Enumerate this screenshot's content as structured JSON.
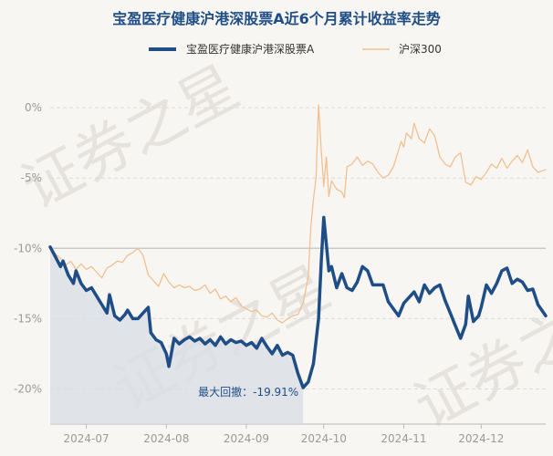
{
  "chart_data": {
    "type": "line",
    "title": "宝盈医疗健康沪港深股票A近6个月累计收益率走势",
    "watermark": "证券之星",
    "y_unit": "%",
    "ylim": [
      -22.5,
      1.5
    ],
    "y_ticks": [
      0,
      -5,
      -10,
      -15,
      -20
    ],
    "y_tick_labels": [
      "0%",
      "-5%",
      "-10%",
      "-15%",
      "-20%"
    ],
    "x_range": [
      "2024-06-17",
      "2024-12-26"
    ],
    "x_ticks": [
      "2024-07-01",
      "2024-08-01",
      "2024-09-01",
      "2024-10-01",
      "2024-11-01",
      "2024-12-01"
    ],
    "x_tick_labels": [
      "2024-07",
      "2024-08",
      "2024-09",
      "2024-10",
      "2024-11",
      "2024-12"
    ],
    "legend_position": "top",
    "grid": true,
    "colors": {
      "fund": "#1f4e86",
      "index": "#f2c08f",
      "drawdown_fill": "#d8dee6"
    },
    "series": [
      {
        "name": "宝盈医疗健康沪港深股票A",
        "values": [
          [
            "2024-06-17",
            -9.9
          ],
          [
            "2024-06-19",
            -10.6
          ],
          [
            "2024-06-21",
            -11.3
          ],
          [
            "2024-06-22",
            -10.9
          ],
          [
            "2024-06-24",
            -11.9
          ],
          [
            "2024-06-26",
            -12.5
          ],
          [
            "2024-06-27",
            -11.6
          ],
          [
            "2024-06-29",
            -12.5
          ],
          [
            "2024-07-01",
            -13.0
          ],
          [
            "2024-07-03",
            -12.8
          ],
          [
            "2024-07-05",
            -13.4
          ],
          [
            "2024-07-07",
            -14.0
          ],
          [
            "2024-07-09",
            -14.6
          ],
          [
            "2024-07-10",
            -13.3
          ],
          [
            "2024-07-12",
            -14.8
          ],
          [
            "2024-07-14",
            -15.1
          ],
          [
            "2024-07-16",
            -14.7
          ],
          [
            "2024-07-17",
            -14.4
          ],
          [
            "2024-07-19",
            -15.0
          ],
          [
            "2024-07-21",
            -15.0
          ],
          [
            "2024-07-23",
            -14.6
          ],
          [
            "2024-07-25",
            -14.2
          ],
          [
            "2024-07-26",
            -16.0
          ],
          [
            "2024-07-28",
            -16.5
          ],
          [
            "2024-07-30",
            -16.7
          ],
          [
            "2024-08-01",
            -17.5
          ],
          [
            "2024-08-02",
            -18.4
          ],
          [
            "2024-08-04",
            -16.4
          ],
          [
            "2024-08-06",
            -16.8
          ],
          [
            "2024-08-08",
            -16.5
          ],
          [
            "2024-08-10",
            -16.3
          ],
          [
            "2024-08-12",
            -16.6
          ],
          [
            "2024-08-14",
            -16.4
          ],
          [
            "2024-08-16",
            -16.8
          ],
          [
            "2024-08-18",
            -16.5
          ],
          [
            "2024-08-20",
            -16.9
          ],
          [
            "2024-08-22",
            -16.3
          ],
          [
            "2024-08-24",
            -16.8
          ],
          [
            "2024-08-26",
            -16.5
          ],
          [
            "2024-08-28",
            -16.7
          ],
          [
            "2024-08-30",
            -16.6
          ],
          [
            "2024-09-01",
            -16.9
          ],
          [
            "2024-09-03",
            -16.7
          ],
          [
            "2024-09-05",
            -17.1
          ],
          [
            "2024-09-07",
            -16.4
          ],
          [
            "2024-09-09",
            -17.0
          ],
          [
            "2024-09-11",
            -17.5
          ],
          [
            "2024-09-13",
            -16.9
          ],
          [
            "2024-09-15",
            -17.6
          ],
          [
            "2024-09-17",
            -17.4
          ],
          [
            "2024-09-19",
            -17.6
          ],
          [
            "2024-09-21",
            -18.9
          ],
          [
            "2024-09-23",
            -19.91
          ],
          [
            "2024-09-25",
            -19.5
          ],
          [
            "2024-09-27",
            -18.2
          ],
          [
            "2024-09-29",
            -15.0
          ],
          [
            "2024-09-30",
            -11.0
          ],
          [
            "2024-10-01",
            -7.8
          ],
          [
            "2024-10-03",
            -11.6
          ],
          [
            "2024-10-04",
            -11.3
          ],
          [
            "2024-10-06",
            -12.8
          ],
          [
            "2024-10-08",
            -11.8
          ],
          [
            "2024-10-10",
            -12.8
          ],
          [
            "2024-10-12",
            -13.0
          ],
          [
            "2024-10-14",
            -12.4
          ],
          [
            "2024-10-16",
            -11.3
          ],
          [
            "2024-10-18",
            -11.6
          ],
          [
            "2024-10-20",
            -12.6
          ],
          [
            "2024-10-22",
            -12.6
          ],
          [
            "2024-10-24",
            -12.6
          ],
          [
            "2024-10-26",
            -13.8
          ],
          [
            "2024-10-28",
            -14.3
          ],
          [
            "2024-10-30",
            -14.8
          ],
          [
            "2024-11-01",
            -13.9
          ],
          [
            "2024-11-03",
            -13.5
          ],
          [
            "2024-11-05",
            -13.1
          ],
          [
            "2024-11-07",
            -13.8
          ],
          [
            "2024-11-09",
            -12.6
          ],
          [
            "2024-11-11",
            -13.2
          ],
          [
            "2024-11-13",
            -12.8
          ],
          [
            "2024-11-15",
            -12.6
          ],
          [
            "2024-11-17",
            -13.7
          ],
          [
            "2024-11-19",
            -14.6
          ],
          [
            "2024-11-21",
            -15.5
          ],
          [
            "2024-11-23",
            -16.4
          ],
          [
            "2024-11-25",
            -15.4
          ],
          [
            "2024-11-26",
            -13.4
          ],
          [
            "2024-11-28",
            -15.2
          ],
          [
            "2024-11-30",
            -14.8
          ],
          [
            "2024-12-01",
            -14.2
          ],
          [
            "2024-12-03",
            -12.6
          ],
          [
            "2024-12-05",
            -13.2
          ],
          [
            "2024-12-07",
            -12.5
          ],
          [
            "2024-12-09",
            -11.6
          ],
          [
            "2024-12-11",
            -11.4
          ],
          [
            "2024-12-13",
            -12.5
          ],
          [
            "2024-12-15",
            -12.2
          ],
          [
            "2024-12-17",
            -12.4
          ],
          [
            "2024-12-19",
            -13.0
          ],
          [
            "2024-12-21",
            -12.9
          ],
          [
            "2024-12-23",
            -14.0
          ],
          [
            "2024-12-26",
            -14.8
          ]
        ]
      },
      {
        "name": "沪深300",
        "values": [
          [
            "2024-06-17",
            -9.9
          ],
          [
            "2024-06-19",
            -10.4
          ],
          [
            "2024-06-21",
            -10.7
          ],
          [
            "2024-06-23",
            -11.2
          ],
          [
            "2024-06-25",
            -10.9
          ],
          [
            "2024-06-27",
            -11.5
          ],
          [
            "2024-06-29",
            -11.1
          ],
          [
            "2024-07-01",
            -11.5
          ],
          [
            "2024-07-03",
            -11.3
          ],
          [
            "2024-07-05",
            -11.7
          ],
          [
            "2024-07-07",
            -12.1
          ],
          [
            "2024-07-09",
            -11.4
          ],
          [
            "2024-07-11",
            -11.2
          ],
          [
            "2024-07-13",
            -10.9
          ],
          [
            "2024-07-15",
            -11.0
          ],
          [
            "2024-07-17",
            -10.5
          ],
          [
            "2024-07-19",
            -10.3
          ],
          [
            "2024-07-21",
            -10.0
          ],
          [
            "2024-07-23",
            -10.5
          ],
          [
            "2024-07-25",
            -11.9
          ],
          [
            "2024-07-27",
            -12.3
          ],
          [
            "2024-07-29",
            -12.7
          ],
          [
            "2024-07-31",
            -11.8
          ],
          [
            "2024-08-02",
            -12.4
          ],
          [
            "2024-08-04",
            -12.8
          ],
          [
            "2024-08-06",
            -12.6
          ],
          [
            "2024-08-08",
            -12.8
          ],
          [
            "2024-08-10",
            -12.7
          ],
          [
            "2024-08-12",
            -13.0
          ],
          [
            "2024-08-14",
            -12.9
          ],
          [
            "2024-08-16",
            -12.6
          ],
          [
            "2024-08-18",
            -13.2
          ],
          [
            "2024-08-20",
            -12.9
          ],
          [
            "2024-08-22",
            -13.6
          ],
          [
            "2024-08-24",
            -13.4
          ],
          [
            "2024-08-26",
            -13.8
          ],
          [
            "2024-08-28",
            -13.5
          ],
          [
            "2024-08-30",
            -14.1
          ],
          [
            "2024-09-01",
            -14.3
          ],
          [
            "2024-09-03",
            -14.5
          ],
          [
            "2024-09-05",
            -14.4
          ],
          [
            "2024-09-07",
            -14.8
          ],
          [
            "2024-09-09",
            -14.9
          ],
          [
            "2024-09-11",
            -14.6
          ],
          [
            "2024-09-13",
            -15.1
          ],
          [
            "2024-09-15",
            -15.3
          ],
          [
            "2024-09-17",
            -15.0
          ],
          [
            "2024-09-19",
            -14.8
          ],
          [
            "2024-09-21",
            -14.7
          ],
          [
            "2024-09-23",
            -13.9
          ],
          [
            "2024-09-25",
            -12.0
          ],
          [
            "2024-09-26",
            -8.5
          ],
          [
            "2024-09-27",
            -6.5
          ],
          [
            "2024-09-28",
            -5.0
          ],
          [
            "2024-09-29",
            0.2
          ],
          [
            "2024-09-30",
            -3.0
          ],
          [
            "2024-10-01",
            -5.6
          ],
          [
            "2024-10-02",
            -3.5
          ],
          [
            "2024-10-03",
            -6.3
          ],
          [
            "2024-10-04",
            -5.2
          ],
          [
            "2024-10-06",
            -5.8
          ],
          [
            "2024-10-08",
            -6.0
          ],
          [
            "2024-10-09",
            -6.4
          ],
          [
            "2024-10-10",
            -4.2
          ],
          [
            "2024-10-12",
            -4.0
          ],
          [
            "2024-10-14",
            -3.5
          ],
          [
            "2024-10-16",
            -4.1
          ],
          [
            "2024-10-18",
            -3.8
          ],
          [
            "2024-10-20",
            -4.0
          ],
          [
            "2024-10-22",
            -4.6
          ],
          [
            "2024-10-24",
            -5.0
          ],
          [
            "2024-10-26",
            -4.8
          ],
          [
            "2024-10-28",
            -4.2
          ],
          [
            "2024-10-30",
            -3.0
          ],
          [
            "2024-10-31",
            -2.4
          ],
          [
            "2024-11-01",
            -2.8
          ],
          [
            "2024-11-02",
            -1.8
          ],
          [
            "2024-11-04",
            -2.2
          ],
          [
            "2024-11-05",
            -1.1
          ],
          [
            "2024-11-07",
            -2.2
          ],
          [
            "2024-11-09",
            -2.5
          ],
          [
            "2024-11-11",
            -1.5
          ],
          [
            "2024-11-13",
            -2.0
          ],
          [
            "2024-11-15",
            -3.5
          ],
          [
            "2024-11-17",
            -4.0
          ],
          [
            "2024-11-19",
            -4.2
          ],
          [
            "2024-11-21",
            -3.5
          ],
          [
            "2024-11-23",
            -3.2
          ],
          [
            "2024-11-25",
            -5.3
          ],
          [
            "2024-11-27",
            -5.5
          ],
          [
            "2024-11-29",
            -4.9
          ],
          [
            "2024-12-01",
            -5.1
          ],
          [
            "2024-12-03",
            -4.6
          ],
          [
            "2024-12-05",
            -4.0
          ],
          [
            "2024-12-07",
            -4.3
          ],
          [
            "2024-12-09",
            -3.6
          ],
          [
            "2024-12-11",
            -4.3
          ],
          [
            "2024-12-13",
            -3.8
          ],
          [
            "2024-12-15",
            -3.4
          ],
          [
            "2024-12-17",
            -3.9
          ],
          [
            "2024-12-19",
            -3.0
          ],
          [
            "2024-12-21",
            -4.2
          ],
          [
            "2024-12-23",
            -4.6
          ],
          [
            "2024-12-26",
            -4.4
          ]
        ]
      }
    ],
    "drawdown": {
      "label": "最大回撤：-19.91%",
      "value": -19.91,
      "start": "2024-06-17",
      "end": "2024-09-23"
    }
  }
}
